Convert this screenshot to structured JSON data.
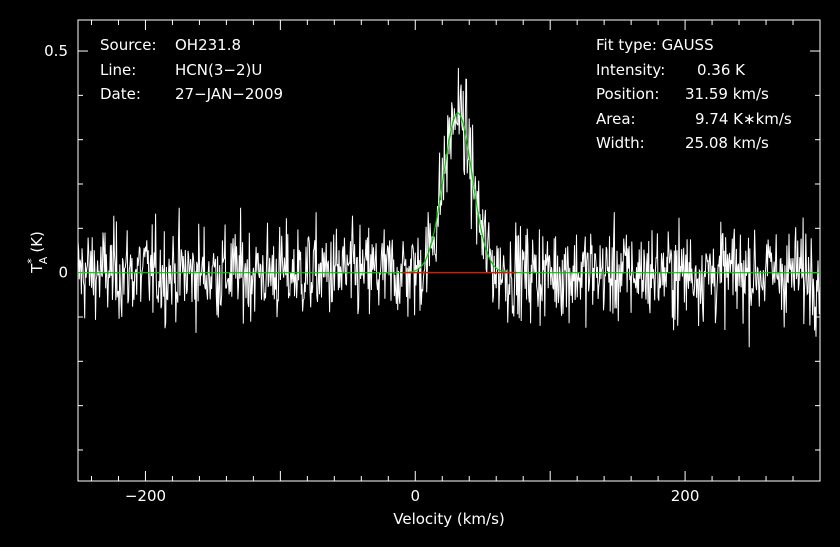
{
  "info": {
    "source_label": "Source:",
    "source_value": "OH231.8",
    "line_label": "Line:",
    "line_value": "HCN(3−2)U",
    "date_label": "Date:",
    "date_value": "27−JAN−2009",
    "fit_type": "Fit type: GAUSS",
    "intensity_label": "Intensity:",
    "intensity_value": "0.36 K",
    "position_label": "Position:",
    "position_value": "31.59 km/s",
    "area_label": "Area:",
    "area_value": "9.74 K∗km/s",
    "width_label": "Width:",
    "width_value": "25.08 km/s"
  },
  "chart_data": {
    "type": "line",
    "xlabel": "Velocity (km/s)",
    "ylabel_main": "T",
    "ylabel_sup": "*",
    "ylabel_sub": "A",
    "ylabel_unit": "(K)",
    "xlim": [
      -250,
      300
    ],
    "ylim": [
      -0.47,
      0.57
    ],
    "x_ticks": [
      -200,
      0,
      200
    ],
    "x_tick_labels": [
      "−200",
      "0",
      "200"
    ],
    "y_ticks": [
      0,
      0.5
    ],
    "y_tick_labels": [
      "0",
      "0.5"
    ],
    "series": [
      {
        "color": "#ffffff",
        "noise_sigma": 0.075,
        "channel_width_kms": 0.5
      },
      {
        "color": "#00cc00",
        "kind": "gaussian_fit",
        "amplitude": 0.36,
        "center": 31.59,
        "fwhm": 25.08
      },
      {
        "color": "#cc2200",
        "kind": "fit_window",
        "x_range": [
          -10,
          75
        ]
      }
    ],
    "colors": {
      "background": "#000000",
      "frame": "#ffffff",
      "spectrum": "#ffffff",
      "fit": "#00cc00",
      "window": "#cc2200"
    }
  }
}
